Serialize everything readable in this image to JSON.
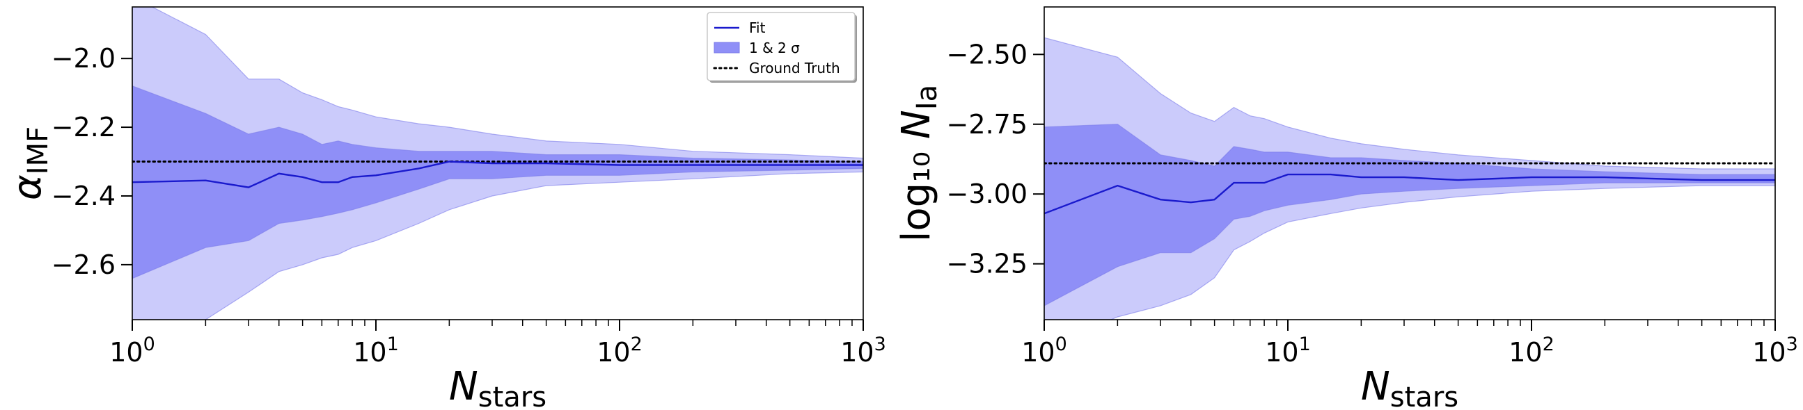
{
  "figure": {
    "background": "#ffffff"
  },
  "chart_data": [
    {
      "type": "line",
      "xscale": "log",
      "xlim": [
        1,
        1000
      ],
      "ylim": [
        -2.76,
        -1.85
      ],
      "xlabel": {
        "main": "N",
        "sub": "stars"
      },
      "ylabel": {
        "main": "α",
        "sub": "IMF",
        "prefix": ""
      },
      "xticks": [
        {
          "value": 1,
          "base": "10",
          "exp": "0"
        },
        {
          "value": 10,
          "base": "10",
          "exp": "1"
        },
        {
          "value": 100,
          "base": "10",
          "exp": "2"
        },
        {
          "value": 1000,
          "base": "10",
          "exp": "3"
        }
      ],
      "yticks": [
        {
          "value": -2.0,
          "label": "−2.0"
        },
        {
          "value": -2.2,
          "label": "−2.2"
        },
        {
          "value": -2.4,
          "label": "−2.4"
        },
        {
          "value": -2.6,
          "label": "−2.6"
        }
      ],
      "ground_truth": -2.3,
      "x": [
        1,
        2,
        3,
        4,
        5,
        6,
        7,
        8,
        10,
        15,
        20,
        30,
        50,
        100,
        200,
        500,
        1000
      ],
      "fit": [
        -2.36,
        -2.355,
        -2.375,
        -2.335,
        -2.345,
        -2.36,
        -2.36,
        -2.345,
        -2.34,
        -2.32,
        -2.3,
        -2.305,
        -2.305,
        -2.31,
        -2.31,
        -2.31,
        -2.31
      ],
      "sigma1_upper": [
        -2.08,
        -2.16,
        -2.22,
        -2.2,
        -2.22,
        -2.25,
        -2.24,
        -2.25,
        -2.26,
        -2.27,
        -2.27,
        -2.27,
        -2.28,
        -2.28,
        -2.29,
        -2.295,
        -2.3
      ],
      "sigma1_lower": [
        -2.64,
        -2.55,
        -2.53,
        -2.48,
        -2.47,
        -2.46,
        -2.45,
        -2.44,
        -2.42,
        -2.38,
        -2.35,
        -2.35,
        -2.34,
        -2.34,
        -2.33,
        -2.325,
        -2.32
      ],
      "sigma2_upper": [
        -1.82,
        -1.93,
        -2.06,
        -2.06,
        -2.1,
        -2.12,
        -2.14,
        -2.15,
        -2.17,
        -2.19,
        -2.2,
        -2.22,
        -2.24,
        -2.25,
        -2.27,
        -2.28,
        -2.29
      ],
      "sigma2_lower": [
        -2.85,
        -2.76,
        -2.68,
        -2.62,
        -2.6,
        -2.58,
        -2.57,
        -2.55,
        -2.53,
        -2.48,
        -2.44,
        -2.4,
        -2.37,
        -2.36,
        -2.35,
        -2.335,
        -2.33
      ],
      "legend": {
        "position": "top-right",
        "entries": [
          {
            "label": "Fit",
            "style": "line"
          },
          {
            "label": "1 & 2 σ",
            "style": "patch"
          },
          {
            "label": "Ground Truth",
            "style": "dotted"
          }
        ]
      }
    },
    {
      "type": "line",
      "xscale": "log",
      "xlim": [
        1,
        1000
      ],
      "ylim": [
        -3.45,
        -2.33
      ],
      "xlabel": {
        "main": "N",
        "sub": "stars"
      },
      "ylabel": {
        "main": "N",
        "sub": "Ia",
        "prefix": "log₁₀ "
      },
      "xticks": [
        {
          "value": 1,
          "base": "10",
          "exp": "0"
        },
        {
          "value": 10,
          "base": "10",
          "exp": "1"
        },
        {
          "value": 100,
          "base": "10",
          "exp": "2"
        },
        {
          "value": 1000,
          "base": "10",
          "exp": "3"
        }
      ],
      "yticks": [
        {
          "value": -2.5,
          "label": "−2.50"
        },
        {
          "value": -2.75,
          "label": "−2.75"
        },
        {
          "value": -3.0,
          "label": "−3.00"
        },
        {
          "value": -3.25,
          "label": "−3.25"
        }
      ],
      "ground_truth": -2.89,
      "x": [
        1,
        2,
        3,
        4,
        5,
        6,
        7,
        8,
        10,
        15,
        20,
        30,
        50,
        100,
        200,
        500,
        1000
      ],
      "fit": [
        -3.07,
        -2.97,
        -3.02,
        -3.03,
        -3.02,
        -2.96,
        -2.96,
        -2.96,
        -2.93,
        -2.93,
        -2.94,
        -2.94,
        -2.95,
        -2.94,
        -2.94,
        -2.95,
        -2.95
      ],
      "sigma1_upper": [
        -2.76,
        -2.75,
        -2.86,
        -2.88,
        -2.9,
        -2.83,
        -2.84,
        -2.85,
        -2.85,
        -2.87,
        -2.87,
        -2.88,
        -2.89,
        -2.91,
        -2.92,
        -2.93,
        -2.93
      ],
      "sigma1_lower": [
        -3.4,
        -3.26,
        -3.21,
        -3.21,
        -3.16,
        -3.09,
        -3.08,
        -3.06,
        -3.04,
        -3.02,
        -3.0,
        -2.99,
        -2.98,
        -2.97,
        -2.96,
        -2.96,
        -2.96
      ],
      "sigma2_upper": [
        -2.44,
        -2.51,
        -2.64,
        -2.71,
        -2.74,
        -2.69,
        -2.72,
        -2.73,
        -2.76,
        -2.8,
        -2.82,
        -2.84,
        -2.86,
        -2.88,
        -2.9,
        -2.91,
        -2.91
      ],
      "sigma2_lower": [
        -3.55,
        -3.44,
        -3.4,
        -3.36,
        -3.3,
        -3.2,
        -3.17,
        -3.14,
        -3.1,
        -3.07,
        -3.05,
        -3.03,
        -3.01,
        -2.99,
        -2.98,
        -2.97,
        -2.97
      ]
    }
  ],
  "style": {
    "fit_color": "#1a1acd",
    "sigma1_fill": "#8f8ff7",
    "sigma2_fill": "#cbcbfb",
    "sigma_edge": "#7b7bea",
    "truth_color": "#000000",
    "axis_color": "#000000"
  }
}
